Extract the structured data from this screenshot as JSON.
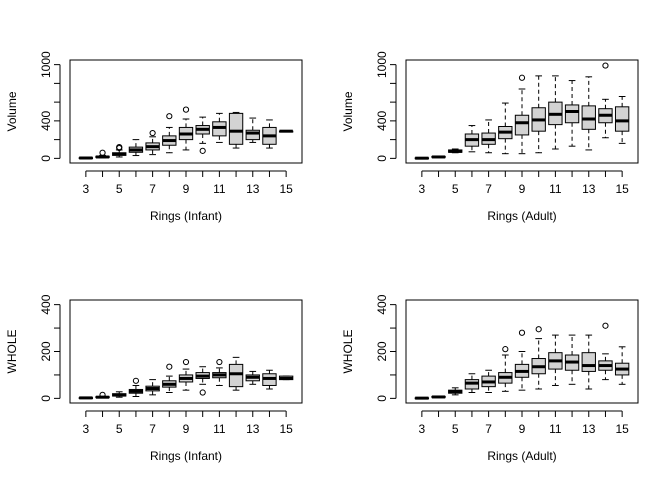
{
  "chart_data": [
    {
      "type": "boxplot",
      "xlabel": "Rings (Infant)",
      "ylabel": "Volume",
      "ylim": [
        0,
        1000
      ],
      "yticks": [
        0,
        400,
        1000
      ],
      "categories": [
        3,
        4,
        5,
        6,
        7,
        8,
        9,
        10,
        11,
        12,
        13,
        14,
        15
      ],
      "xtick_labels": [
        3,
        5,
        7,
        9,
        11,
        13,
        15
      ],
      "boxes": [
        {
          "cat": 3,
          "min": 0,
          "q1": 2,
          "med": 4,
          "q3": 7,
          "max": 12,
          "outliers": []
        },
        {
          "cat": 4,
          "min": 5,
          "q1": 10,
          "med": 15,
          "q3": 22,
          "max": 32,
          "outliers": [
            60
          ]
        },
        {
          "cat": 5,
          "min": 15,
          "q1": 32,
          "med": 45,
          "q3": 60,
          "max": 90,
          "outliers": [
            110,
            120
          ]
        },
        {
          "cat": 6,
          "min": 30,
          "q1": 65,
          "med": 90,
          "q3": 120,
          "max": 200,
          "outliers": []
        },
        {
          "cat": 7,
          "min": 40,
          "q1": 90,
          "med": 125,
          "q3": 165,
          "max": 230,
          "outliers": [
            270
          ]
        },
        {
          "cat": 8,
          "min": 60,
          "q1": 140,
          "med": 190,
          "q3": 240,
          "max": 330,
          "outliers": [
            450
          ]
        },
        {
          "cat": 9,
          "min": 90,
          "q1": 200,
          "med": 260,
          "q3": 330,
          "max": 420,
          "outliers": [
            520
          ]
        },
        {
          "cat": 10,
          "min": 160,
          "q1": 260,
          "med": 310,
          "q3": 350,
          "max": 440,
          "outliers": [
            80
          ]
        },
        {
          "cat": 11,
          "min": 170,
          "q1": 240,
          "med": 330,
          "q3": 390,
          "max": 480,
          "outliers": []
        },
        {
          "cat": 12,
          "min": 110,
          "q1": 150,
          "med": 290,
          "q3": 480,
          "max": 490,
          "outliers": []
        },
        {
          "cat": 13,
          "min": 170,
          "q1": 200,
          "med": 270,
          "q3": 300,
          "max": 430,
          "outliers": []
        },
        {
          "cat": 14,
          "min": 110,
          "q1": 150,
          "med": 240,
          "q3": 330,
          "max": 410,
          "outliers": []
        },
        {
          "cat": 15,
          "min": 290,
          "q1": 290,
          "med": 290,
          "q3": 290,
          "max": 290,
          "outliers": []
        }
      ]
    },
    {
      "type": "boxplot",
      "xlabel": "Rings (Adult)",
      "ylabel": "Volume",
      "ylim": [
        0,
        1000
      ],
      "yticks": [
        0,
        400,
        1000
      ],
      "categories": [
        3,
        4,
        5,
        6,
        7,
        8,
        9,
        10,
        11,
        12,
        13,
        14,
        15
      ],
      "xtick_labels": [
        3,
        5,
        7,
        9,
        11,
        13,
        15
      ],
      "boxes": [
        {
          "cat": 3,
          "min": 0,
          "q1": 0,
          "med": 2,
          "q3": 5,
          "max": 8,
          "outliers": []
        },
        {
          "cat": 4,
          "min": 10,
          "q1": 12,
          "med": 15,
          "q3": 20,
          "max": 25,
          "outliers": []
        },
        {
          "cat": 5,
          "min": 60,
          "q1": 65,
          "med": 75,
          "q3": 90,
          "max": 100,
          "outliers": []
        },
        {
          "cat": 6,
          "min": 70,
          "q1": 130,
          "med": 200,
          "q3": 260,
          "max": 350,
          "outliers": []
        },
        {
          "cat": 7,
          "min": 60,
          "q1": 150,
          "med": 200,
          "q3": 270,
          "max": 410,
          "outliers": []
        },
        {
          "cat": 8,
          "min": 50,
          "q1": 210,
          "med": 280,
          "q3": 340,
          "max": 590,
          "outliers": []
        },
        {
          "cat": 9,
          "min": 50,
          "q1": 250,
          "med": 380,
          "q3": 460,
          "max": 740,
          "outliers": [
            860
          ]
        },
        {
          "cat": 10,
          "min": 60,
          "q1": 290,
          "med": 410,
          "q3": 540,
          "max": 880,
          "outliers": []
        },
        {
          "cat": 11,
          "min": 100,
          "q1": 360,
          "med": 470,
          "q3": 600,
          "max": 880,
          "outliers": []
        },
        {
          "cat": 12,
          "min": 130,
          "q1": 380,
          "med": 500,
          "q3": 570,
          "max": 830,
          "outliers": []
        },
        {
          "cat": 13,
          "min": 90,
          "q1": 310,
          "med": 420,
          "q3": 560,
          "max": 870,
          "outliers": []
        },
        {
          "cat": 14,
          "min": 220,
          "q1": 380,
          "med": 460,
          "q3": 530,
          "max": 630,
          "outliers": [
            990
          ]
        },
        {
          "cat": 15,
          "min": 160,
          "q1": 290,
          "med": 400,
          "q3": 550,
          "max": 660,
          "outliers": []
        }
      ]
    },
    {
      "type": "boxplot",
      "xlabel": "Rings (Infant)",
      "ylabel": "WHOLE",
      "ylim": [
        0,
        400
      ],
      "yticks": [
        0,
        200,
        400
      ],
      "categories": [
        3,
        4,
        5,
        6,
        7,
        8,
        9,
        10,
        11,
        12,
        13,
        14,
        15
      ],
      "xtick_labels": [
        3,
        5,
        7,
        9,
        11,
        13,
        15
      ],
      "boxes": [
        {
          "cat": 3,
          "min": 0,
          "q1": 1,
          "med": 2,
          "q3": 3,
          "max": 4,
          "outliers": []
        },
        {
          "cat": 4,
          "min": 2,
          "q1": 4,
          "med": 5,
          "q3": 7,
          "max": 9,
          "outliers": [
            15
          ]
        },
        {
          "cat": 5,
          "min": 5,
          "q1": 10,
          "med": 14,
          "q3": 20,
          "max": 28,
          "outliers": []
        },
        {
          "cat": 6,
          "min": 8,
          "q1": 22,
          "med": 30,
          "q3": 38,
          "max": 55,
          "outliers": [
            75
          ]
        },
        {
          "cat": 7,
          "min": 15,
          "q1": 32,
          "med": 42,
          "q3": 52,
          "max": 80,
          "outliers": []
        },
        {
          "cat": 8,
          "min": 25,
          "q1": 48,
          "med": 60,
          "q3": 75,
          "max": 95,
          "outliers": [
            135
          ]
        },
        {
          "cat": 9,
          "min": 35,
          "q1": 70,
          "med": 85,
          "q3": 100,
          "max": 125,
          "outliers": [
            155
          ]
        },
        {
          "cat": 10,
          "min": 60,
          "q1": 85,
          "med": 95,
          "q3": 110,
          "max": 135,
          "outliers": [
            25
          ]
        },
        {
          "cat": 11,
          "min": 55,
          "q1": 88,
          "med": 100,
          "q3": 110,
          "max": 130,
          "outliers": [
            155
          ]
        },
        {
          "cat": 12,
          "min": 35,
          "q1": 50,
          "med": 105,
          "q3": 145,
          "max": 175,
          "outliers": []
        },
        {
          "cat": 13,
          "min": 60,
          "q1": 75,
          "med": 90,
          "q3": 100,
          "max": 115,
          "outliers": []
        },
        {
          "cat": 14,
          "min": 40,
          "q1": 55,
          "med": 85,
          "q3": 105,
          "max": 120,
          "outliers": []
        },
        {
          "cat": 15,
          "min": 80,
          "q1": 80,
          "med": 85,
          "q3": 95,
          "max": 95,
          "outliers": []
        }
      ]
    },
    {
      "type": "boxplot",
      "xlabel": "Rings (Adult)",
      "ylabel": "WHOLE",
      "ylim": [
        0,
        400
      ],
      "yticks": [
        0,
        200,
        400
      ],
      "categories": [
        3,
        4,
        5,
        6,
        7,
        8,
        9,
        10,
        11,
        12,
        13,
        14,
        15
      ],
      "xtick_labels": [
        3,
        5,
        7,
        9,
        11,
        13,
        15
      ],
      "boxes": [
        {
          "cat": 3,
          "min": 0,
          "q1": 0,
          "med": 1,
          "q3": 2,
          "max": 3,
          "outliers": []
        },
        {
          "cat": 4,
          "min": 4,
          "q1": 5,
          "med": 6,
          "q3": 8,
          "max": 10,
          "outliers": []
        },
        {
          "cat": 5,
          "min": 15,
          "q1": 22,
          "med": 28,
          "q3": 35,
          "max": 45,
          "outliers": []
        },
        {
          "cat": 6,
          "min": 25,
          "q1": 40,
          "med": 65,
          "q3": 80,
          "max": 105,
          "outliers": []
        },
        {
          "cat": 7,
          "min": 25,
          "q1": 50,
          "med": 70,
          "q3": 95,
          "max": 120,
          "outliers": []
        },
        {
          "cat": 8,
          "min": 30,
          "q1": 65,
          "med": 90,
          "q3": 110,
          "max": 185,
          "outliers": [
            210
          ]
        },
        {
          "cat": 9,
          "min": 35,
          "q1": 90,
          "med": 115,
          "q3": 145,
          "max": 200,
          "outliers": [
            280
          ]
        },
        {
          "cat": 10,
          "min": 40,
          "q1": 105,
          "med": 135,
          "q3": 170,
          "max": 255,
          "outliers": [
            295
          ]
        },
        {
          "cat": 11,
          "min": 55,
          "q1": 125,
          "med": 160,
          "q3": 195,
          "max": 270,
          "outliers": []
        },
        {
          "cat": 12,
          "min": 60,
          "q1": 120,
          "med": 155,
          "q3": 185,
          "max": 270,
          "outliers": []
        },
        {
          "cat": 13,
          "min": 40,
          "q1": 115,
          "med": 140,
          "q3": 195,
          "max": 270,
          "outliers": []
        },
        {
          "cat": 14,
          "min": 80,
          "q1": 120,
          "med": 140,
          "q3": 160,
          "max": 190,
          "outliers": [
            310
          ]
        },
        {
          "cat": 15,
          "min": 60,
          "q1": 100,
          "med": 125,
          "q3": 150,
          "max": 220,
          "outliers": []
        }
      ]
    }
  ],
  "colors": {
    "box_fill": "#d3d3d3",
    "stroke": "#000000",
    "background": "#ffffff"
  }
}
